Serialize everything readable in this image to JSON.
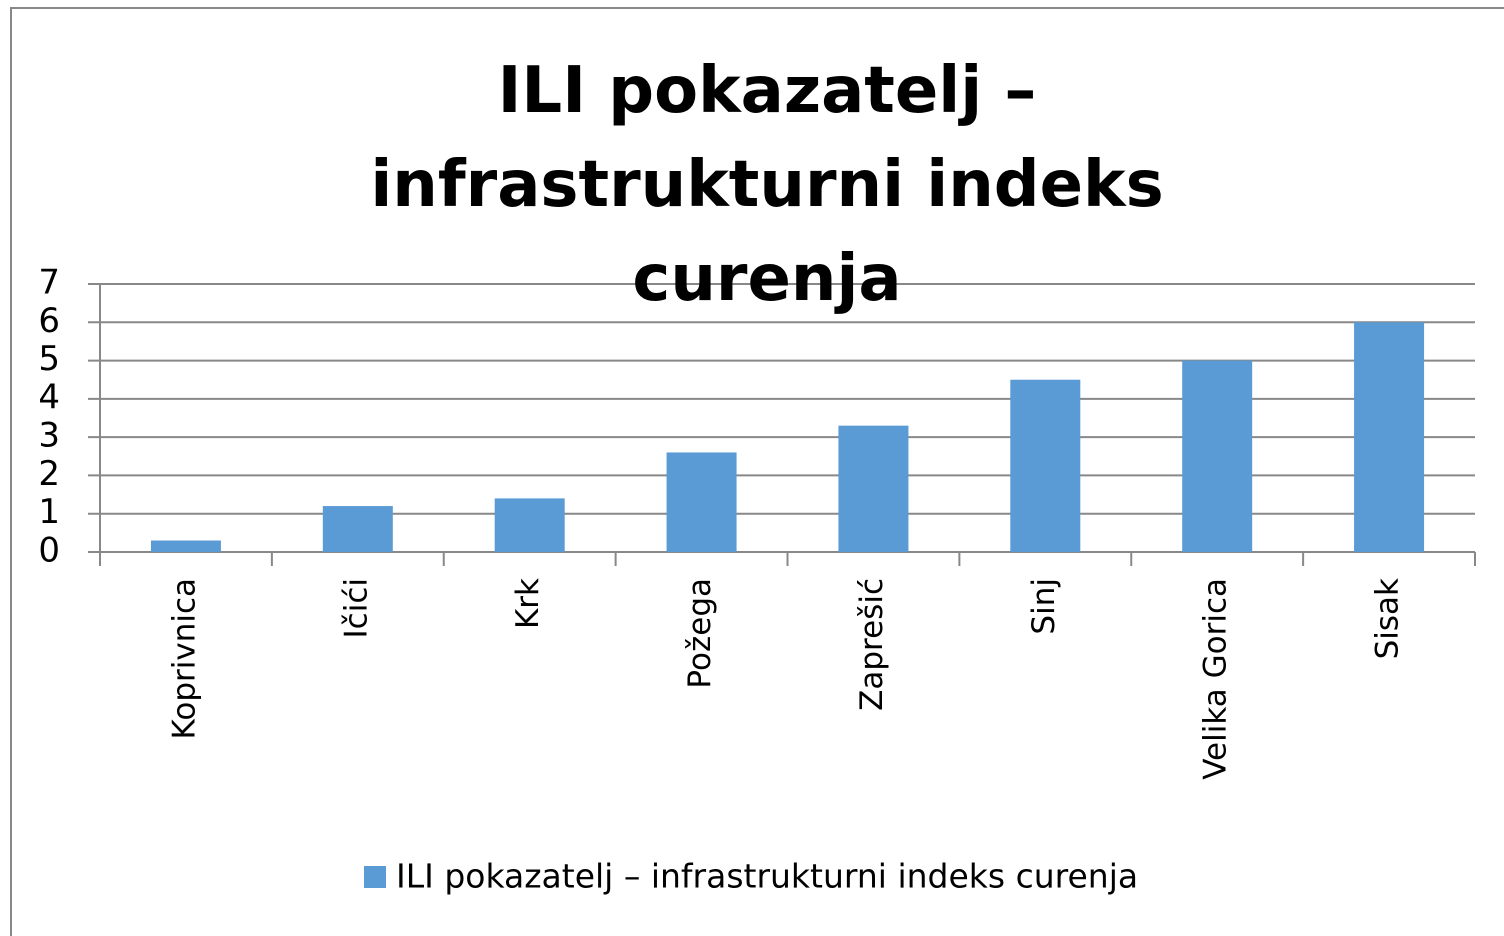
{
  "chart_data": {
    "type": "bar",
    "title": "ILI pokazatelj – infrastrukturni indeks curenja",
    "categories": [
      "Koprivnica",
      "Ičići",
      "Krk",
      "Požega",
      "Zaprešić",
      "Sinj",
      "Velika Gorica",
      "Sisak"
    ],
    "series": [
      {
        "name": "ILI pokazatelj – infrastrukturni indeks curenja",
        "color": "#5b9bd5",
        "values": [
          0.3,
          1.2,
          1.4,
          2.6,
          3.3,
          4.5,
          5.0,
          6.0
        ]
      }
    ],
    "ylim": [
      0,
      7
    ],
    "yticks": [
      0,
      1,
      2,
      3,
      4,
      5,
      6,
      7
    ],
    "grid": true,
    "legend": "bottom"
  }
}
